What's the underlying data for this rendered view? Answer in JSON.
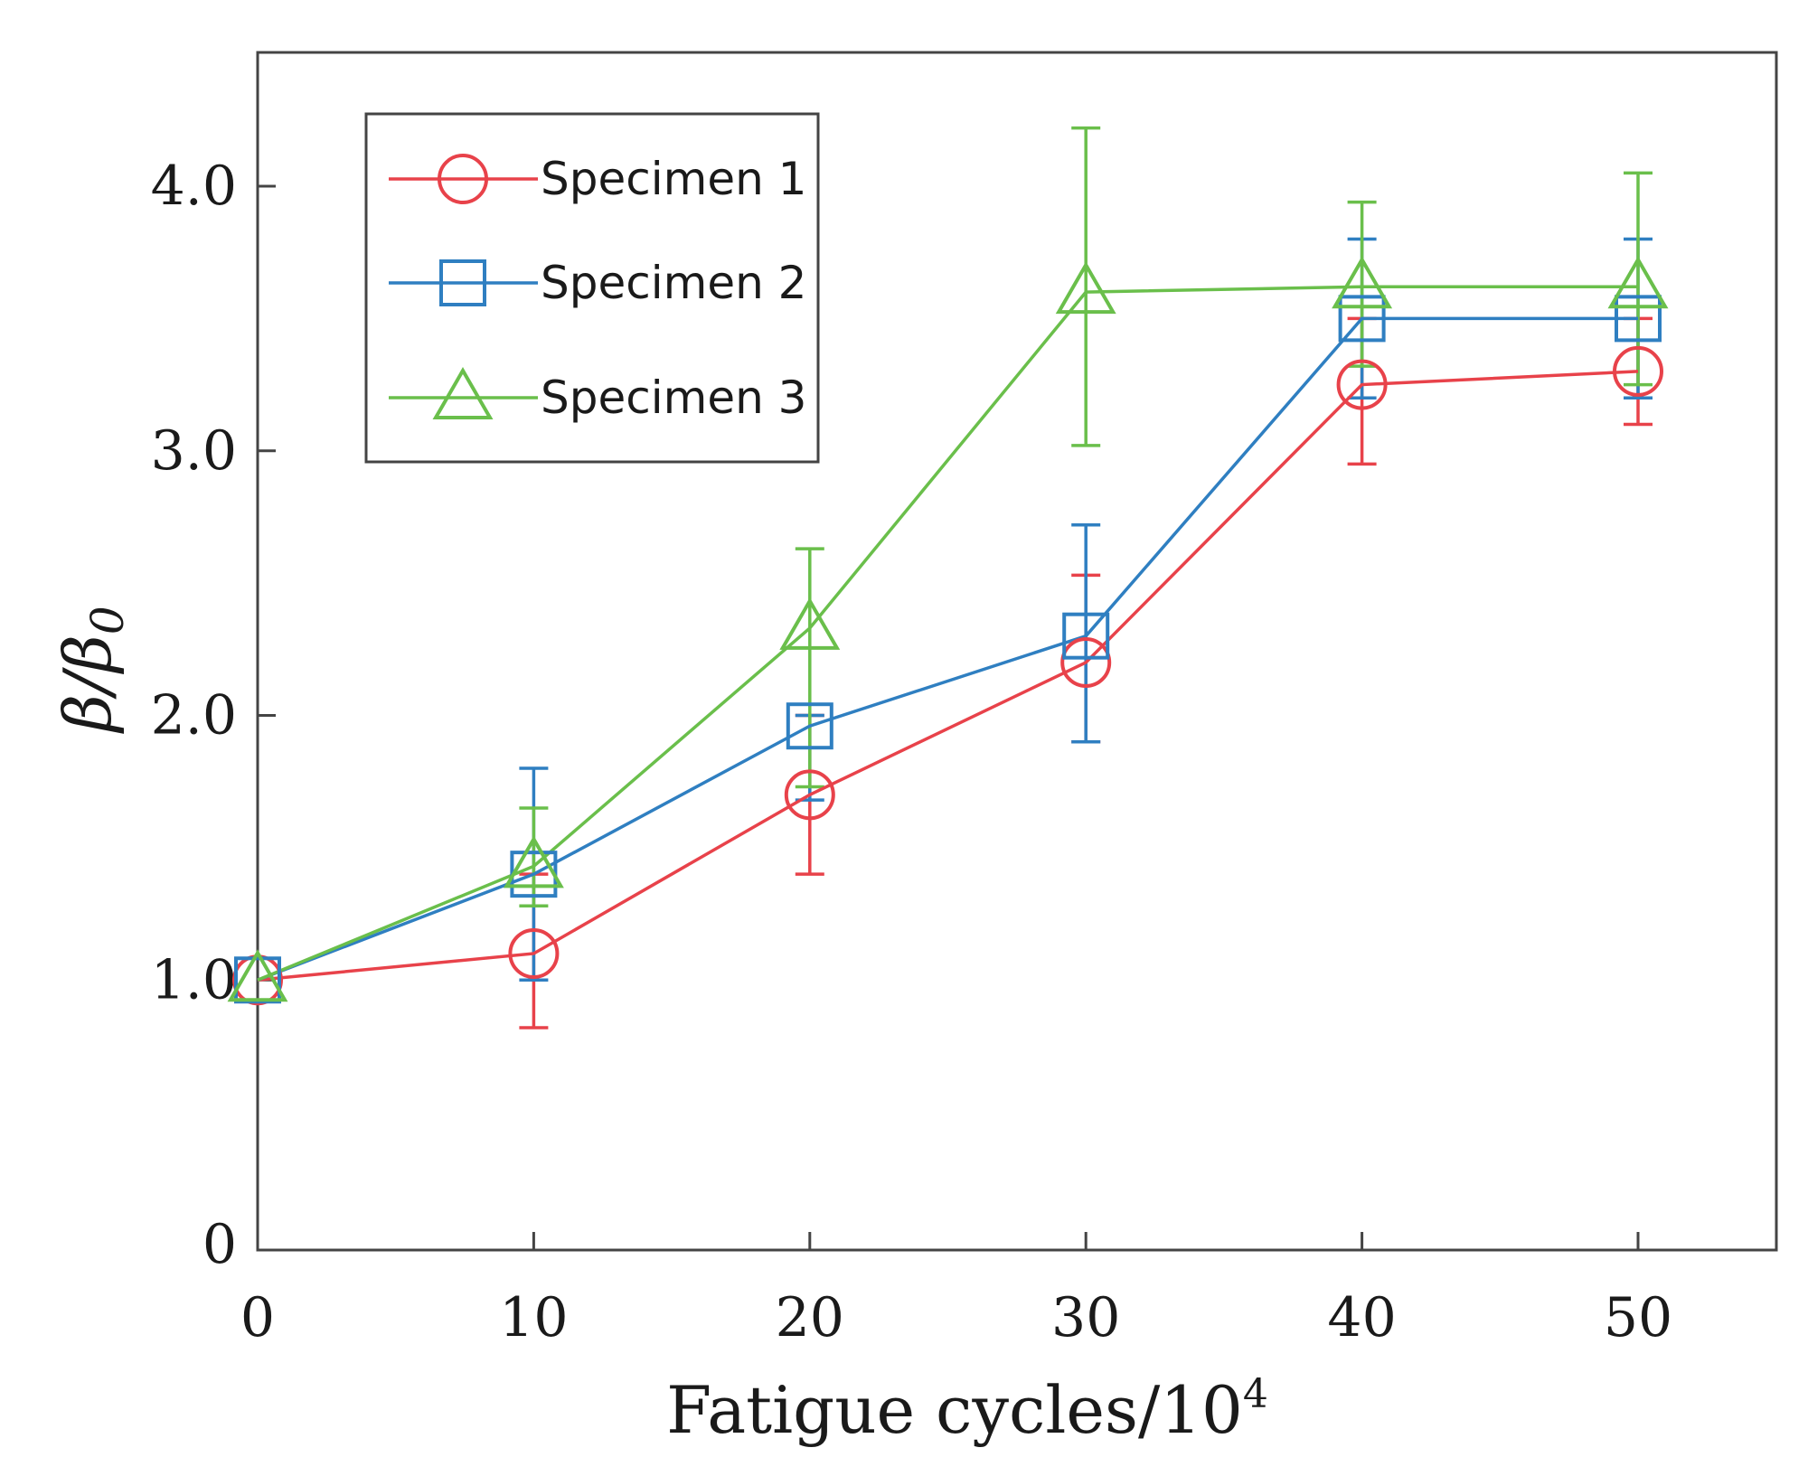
{
  "chart_data": {
    "type": "line",
    "title": "",
    "xlabel": "Fatigue cycles/10",
    "xlabel_sup": "4",
    "ylabel": "β/β",
    "ylabel_sub": "0",
    "xlim": [
      0,
      55
    ],
    "ylim": [
      0,
      4.5
    ],
    "xticks": [
      0,
      10,
      20,
      30,
      40,
      50
    ],
    "xtick_labels": [
      "0",
      "10",
      "20",
      "30",
      "40",
      "50"
    ],
    "yticks": [
      0,
      1.0,
      2.0,
      3.0,
      4.0
    ],
    "ytick_labels": [
      "0",
      "1.0",
      "2.0",
      "3.0",
      "4.0"
    ],
    "grid": false,
    "legend_position": "top-left",
    "x": [
      0,
      10,
      20,
      30,
      40,
      50
    ],
    "series": [
      {
        "name": "Specimen 1",
        "color": "#e8424a",
        "marker": "circle",
        "values": [
          1.0,
          1.1,
          1.7,
          2.2,
          3.25,
          3.3
        ],
        "err_low": [
          0.0,
          0.28,
          0.3,
          0.3,
          0.3,
          0.2
        ],
        "err_high": [
          0.0,
          0.3,
          0.3,
          0.33,
          0.25,
          0.2
        ]
      },
      {
        "name": "Specimen 2",
        "color": "#2f7fc1",
        "marker": "square",
        "values": [
          1.0,
          1.4,
          1.96,
          2.3,
          3.5,
          3.5
        ],
        "err_low": [
          0.0,
          0.4,
          0.28,
          0.4,
          0.3,
          0.3
        ],
        "err_high": [
          0.0,
          0.4,
          0.04,
          0.42,
          0.3,
          0.3
        ]
      },
      {
        "name": "Specimen 3",
        "color": "#6abf4b",
        "marker": "triangle",
        "values": [
          1.0,
          1.43,
          2.33,
          3.6,
          3.62,
          3.62
        ],
        "err_low": [
          0.0,
          0.15,
          0.6,
          0.58,
          0.3,
          0.37
        ],
        "err_high": [
          0.0,
          0.22,
          0.3,
          0.62,
          0.32,
          0.43
        ]
      }
    ]
  }
}
